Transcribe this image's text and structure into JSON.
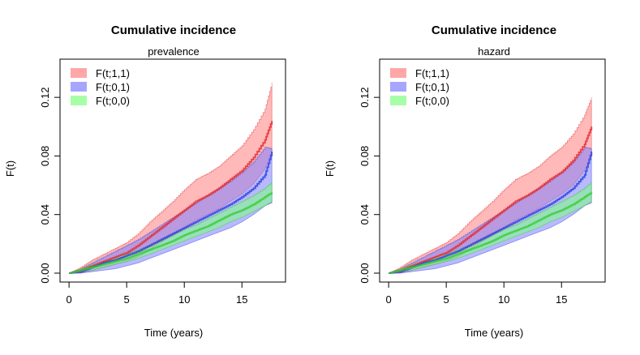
{
  "chart_data": [
    {
      "type": "line",
      "title": "Cumulative incidence",
      "subtitle": "prevalence",
      "xlabel": "Time (years)",
      "ylabel": "F(t)",
      "xlim": [
        0,
        18
      ],
      "ylim": [
        0,
        0.14
      ],
      "x_ticks": [
        0,
        5,
        10,
        15
      ],
      "y_ticks": [
        0.0,
        0.04,
        0.08,
        0.12
      ],
      "x_tick_labels": [
        "0",
        "5",
        "10",
        "15"
      ],
      "y_tick_labels": [
        "0.00",
        "0.04",
        "0.08",
        "0.12"
      ],
      "legend_position": "top-left",
      "series": [
        {
          "name": "F(t;1,1)",
          "color": "#e3282d",
          "fill": "#ff8080",
          "x": [
            0,
            1,
            2,
            3,
            4,
            5,
            6,
            7,
            8,
            9,
            10,
            11,
            12,
            13,
            14,
            15,
            16,
            17,
            17.6
          ],
          "y": [
            0.0,
            0.002,
            0.005,
            0.008,
            0.011,
            0.014,
            0.019,
            0.025,
            0.031,
            0.037,
            0.043,
            0.049,
            0.053,
            0.058,
            0.064,
            0.07,
            0.079,
            0.091,
            0.104
          ],
          "lower": [
            0.0,
            0.0,
            0.002,
            0.004,
            0.006,
            0.008,
            0.011,
            0.016,
            0.021,
            0.026,
            0.031,
            0.036,
            0.04,
            0.044,
            0.049,
            0.054,
            0.061,
            0.071,
            0.082
          ],
          "upper": [
            0.0,
            0.004,
            0.009,
            0.013,
            0.017,
            0.021,
            0.027,
            0.035,
            0.042,
            0.049,
            0.057,
            0.064,
            0.068,
            0.073,
            0.08,
            0.087,
            0.098,
            0.112,
            0.13
          ]
        },
        {
          "name": "F(t;0,1)",
          "color": "#2a3fd9",
          "fill": "#8080ff",
          "x": [
            0,
            1,
            2,
            3,
            4,
            5,
            6,
            7,
            8,
            9,
            10,
            11,
            12,
            13,
            14,
            15,
            16,
            17,
            17.6
          ],
          "y": [
            0.0,
            0.001,
            0.004,
            0.007,
            0.009,
            0.012,
            0.015,
            0.019,
            0.023,
            0.027,
            0.031,
            0.035,
            0.039,
            0.043,
            0.047,
            0.052,
            0.058,
            0.067,
            0.083
          ],
          "lower": [
            0.0,
            0.0,
            0.001,
            0.002,
            0.003,
            0.005,
            0.007,
            0.01,
            0.013,
            0.016,
            0.019,
            0.022,
            0.025,
            0.028,
            0.031,
            0.035,
            0.04,
            0.046,
            0.048
          ],
          "upper": [
            0.0,
            0.003,
            0.007,
            0.011,
            0.015,
            0.019,
            0.023,
            0.028,
            0.033,
            0.038,
            0.043,
            0.048,
            0.053,
            0.058,
            0.063,
            0.069,
            0.076,
            0.086,
            0.085
          ]
        },
        {
          "name": "F(t;0,0)",
          "color": "#32cd32",
          "fill": "#80ff80",
          "x": [
            0,
            1,
            2,
            3,
            4,
            5,
            6,
            7,
            8,
            9,
            10,
            11,
            12,
            13,
            14,
            15,
            16,
            17,
            17.6
          ],
          "y": [
            0.0,
            0.002,
            0.004,
            0.006,
            0.008,
            0.01,
            0.013,
            0.016,
            0.019,
            0.022,
            0.026,
            0.029,
            0.032,
            0.036,
            0.04,
            0.043,
            0.047,
            0.052,
            0.055
          ],
          "lower": [
            0.0,
            0.001,
            0.002,
            0.004,
            0.006,
            0.008,
            0.01,
            0.013,
            0.016,
            0.019,
            0.022,
            0.025,
            0.028,
            0.031,
            0.035,
            0.038,
            0.042,
            0.046,
            0.049
          ],
          "upper": [
            0.0,
            0.003,
            0.006,
            0.008,
            0.011,
            0.013,
            0.016,
            0.019,
            0.022,
            0.026,
            0.03,
            0.033,
            0.037,
            0.041,
            0.045,
            0.049,
            0.053,
            0.058,
            0.062
          ]
        }
      ]
    },
    {
      "type": "line",
      "title": "Cumulative incidence",
      "subtitle": "hazard",
      "xlabel": "Time (years)",
      "ylabel": "F(t)",
      "xlim": [
        0,
        18
      ],
      "ylim": [
        0,
        0.14
      ],
      "x_ticks": [
        0,
        5,
        10,
        15
      ],
      "y_ticks": [
        0.0,
        0.04,
        0.08,
        0.12
      ],
      "x_tick_labels": [
        "0",
        "5",
        "10",
        "15"
      ],
      "y_tick_labels": [
        "0.00",
        "0.04",
        "0.08",
        "0.12"
      ],
      "legend_position": "top-left",
      "series": [
        {
          "name": "F(t;1,1)",
          "color": "#e3282d",
          "fill": "#ff8080",
          "x": [
            0,
            1,
            2,
            3,
            4,
            5,
            6,
            7,
            8,
            9,
            10,
            11,
            12,
            13,
            14,
            15,
            16,
            17,
            17.6
          ],
          "y": [
            0.0,
            0.002,
            0.005,
            0.008,
            0.011,
            0.014,
            0.019,
            0.025,
            0.031,
            0.037,
            0.043,
            0.049,
            0.053,
            0.058,
            0.064,
            0.069,
            0.077,
            0.088,
            0.1
          ],
          "lower": [
            0.0,
            0.0,
            0.002,
            0.004,
            0.006,
            0.008,
            0.011,
            0.016,
            0.021,
            0.026,
            0.031,
            0.036,
            0.04,
            0.044,
            0.049,
            0.054,
            0.06,
            0.07,
            0.08
          ],
          "upper": [
            0.0,
            0.004,
            0.009,
            0.013,
            0.017,
            0.021,
            0.027,
            0.035,
            0.042,
            0.049,
            0.057,
            0.064,
            0.068,
            0.073,
            0.08,
            0.086,
            0.095,
            0.108,
            0.12
          ]
        },
        {
          "name": "F(t;0,1)",
          "color": "#2a3fd9",
          "fill": "#8080ff",
          "x": [
            0,
            1,
            2,
            3,
            4,
            5,
            6,
            7,
            8,
            9,
            10,
            11,
            12,
            13,
            14,
            15,
            16,
            17,
            17.6
          ],
          "y": [
            0.0,
            0.001,
            0.004,
            0.007,
            0.009,
            0.012,
            0.015,
            0.019,
            0.023,
            0.027,
            0.031,
            0.035,
            0.039,
            0.043,
            0.047,
            0.052,
            0.058,
            0.067,
            0.083
          ],
          "lower": [
            0.0,
            0.0,
            0.001,
            0.002,
            0.003,
            0.005,
            0.007,
            0.01,
            0.013,
            0.016,
            0.019,
            0.022,
            0.025,
            0.028,
            0.031,
            0.035,
            0.04,
            0.046,
            0.048
          ],
          "upper": [
            0.0,
            0.003,
            0.007,
            0.011,
            0.015,
            0.019,
            0.023,
            0.028,
            0.033,
            0.038,
            0.043,
            0.048,
            0.053,
            0.058,
            0.063,
            0.069,
            0.076,
            0.086,
            0.085
          ]
        },
        {
          "name": "F(t;0,0)",
          "color": "#32cd32",
          "fill": "#80ff80",
          "x": [
            0,
            1,
            2,
            3,
            4,
            5,
            6,
            7,
            8,
            9,
            10,
            11,
            12,
            13,
            14,
            15,
            16,
            17,
            17.6
          ],
          "y": [
            0.0,
            0.002,
            0.004,
            0.006,
            0.008,
            0.01,
            0.013,
            0.016,
            0.019,
            0.022,
            0.026,
            0.029,
            0.032,
            0.036,
            0.04,
            0.043,
            0.047,
            0.052,
            0.055
          ],
          "lower": [
            0.0,
            0.001,
            0.002,
            0.004,
            0.006,
            0.008,
            0.01,
            0.013,
            0.016,
            0.019,
            0.022,
            0.025,
            0.028,
            0.031,
            0.035,
            0.038,
            0.042,
            0.046,
            0.049
          ],
          "upper": [
            0.0,
            0.003,
            0.006,
            0.008,
            0.011,
            0.013,
            0.016,
            0.019,
            0.022,
            0.026,
            0.03,
            0.033,
            0.037,
            0.041,
            0.045,
            0.049,
            0.053,
            0.058,
            0.062
          ]
        }
      ]
    }
  ]
}
